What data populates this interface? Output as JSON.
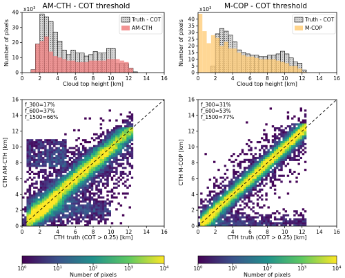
{
  "chart_data": [
    {
      "type": "bar",
      "panel": "top-left",
      "title": "AM-CTH - COT threshold",
      "xlabel": "Cloud top height [km]",
      "ylabel": "Number of pixels",
      "y_multiplier": "x10",
      "y_multiplier_exp": "3",
      "xlim": [
        0,
        16
      ],
      "ylim": [
        0,
        40
      ],
      "xticks": [
        "0",
        "2",
        "4",
        "6",
        "8",
        "10",
        "12",
        "14",
        "16"
      ],
      "yticks": [
        "0",
        "10",
        "20",
        "30",
        "40"
      ],
      "grid": false,
      "legend": "top-right",
      "bin_width": 0.5,
      "bin_starts": [
        1.0,
        1.5,
        2.0,
        2.5,
        3.0,
        3.5,
        4.0,
        4.5,
        5.0,
        5.5,
        6.0,
        6.5,
        7.0,
        7.5,
        8.0,
        8.5,
        9.0,
        9.5,
        10.0,
        10.5,
        11.0,
        11.5,
        12.0,
        12.5
      ],
      "series": [
        {
          "name": "Truth - COT",
          "style": "hatched",
          "color": "#cccccc",
          "values": [
            2,
            19,
            39,
            37,
            34,
            27,
            21,
            15,
            12,
            15,
            13,
            13,
            11,
            12,
            14,
            13,
            13,
            16,
            16,
            6,
            6,
            6,
            3,
            0.5
          ]
        },
        {
          "name": "AM-CTH",
          "style": "filled",
          "color": "#f08080",
          "values": [
            2,
            19,
            21,
            24,
            14,
            11,
            10,
            9,
            8,
            8,
            7,
            7,
            7,
            8,
            8,
            8,
            8,
            9,
            9,
            9,
            8,
            7,
            3,
            0
          ]
        }
      ]
    },
    {
      "type": "bar",
      "panel": "top-right",
      "title": "M-COP - COT threshold",
      "xlabel": "Cloud top height [km]",
      "ylabel": "Number of pixels",
      "y_multiplier": "x10",
      "y_multiplier_exp": "3",
      "xlim": [
        0,
        16
      ],
      "ylim": [
        0,
        45
      ],
      "xticks": [
        "0",
        "2",
        "4",
        "6",
        "8",
        "10",
        "12",
        "14",
        "16"
      ],
      "yticks": [
        "0",
        "5",
        "10",
        "15",
        "20",
        "25",
        "30",
        "35",
        "40"
      ],
      "grid": false,
      "legend": "top-right",
      "bin_width": 0.5,
      "bin_starts": [
        0.0,
        0.5,
        1.0,
        1.5,
        2.0,
        2.5,
        3.0,
        3.5,
        4.0,
        4.5,
        5.0,
        5.5,
        6.0,
        6.5,
        7.0,
        7.5,
        8.0,
        8.5,
        9.0,
        9.5,
        10.0,
        10.5,
        11.0,
        11.5,
        12.0,
        12.5
      ],
      "series": [
        {
          "name": "Truth - COT",
          "style": "hatched",
          "color": "#cccccc",
          "values": [
            0,
            0,
            0,
            5,
            29,
            33,
            31,
            28,
            23,
            17,
            15,
            14,
            13,
            13,
            12,
            12,
            13,
            13,
            14,
            16,
            14,
            11,
            8,
            7,
            2,
            0
          ]
        },
        {
          "name": "M-COP",
          "style": "filled",
          "color": "#ffcc77",
          "values": [
            44,
            31,
            22,
            28,
            26,
            20,
            23,
            18,
            18,
            15,
            13,
            12,
            12,
            11,
            10,
            10,
            10,
            10,
            9,
            8,
            7,
            5,
            5,
            3,
            0.5,
            0
          ]
        }
      ]
    },
    {
      "type": "heatmap",
      "panel": "bottom-left",
      "xlabel": "CTH truth (COT > 0.25) [km]",
      "ylabel": "CTH AM-CTH [km]",
      "xlim": [
        0,
        16
      ],
      "ylim": [
        0,
        16
      ],
      "xticks": [
        "0",
        "2",
        "4",
        "6",
        "8",
        "10",
        "12",
        "14",
        "16"
      ],
      "yticks": [
        "0",
        "2",
        "4",
        "6",
        "8",
        "10",
        "12",
        "14",
        "16"
      ],
      "diagonal": "1:1 dashed",
      "annotations": [
        "f_300=17%",
        "f_600=37%",
        "f_1500=66%"
      ],
      "colorscale": "viridis-log",
      "colorbar": {
        "label": "Number of pixels",
        "min": 1,
        "max": 10000,
        "ticks": [
          "10",
          "10",
          "10",
          "10",
          "10"
        ],
        "tick_exps": [
          "0",
          "1",
          "2",
          "3",
          "4"
        ]
      }
    },
    {
      "type": "heatmap",
      "panel": "bottom-right",
      "xlabel": "CTH truth (COT > 0.25) [km]",
      "ylabel": "CTH M-COP [km]",
      "xlim": [
        0,
        16
      ],
      "ylim": [
        0,
        16
      ],
      "xticks": [
        "0",
        "2",
        "4",
        "6",
        "8",
        "10",
        "12",
        "14",
        "16"
      ],
      "yticks": [
        "0",
        "2",
        "4",
        "6",
        "8",
        "10",
        "12",
        "14",
        "16"
      ],
      "diagonal": "1:1 dashed",
      "annotations": [
        "f_300=31%",
        "f_600=53%",
        "f_1500=77%"
      ],
      "colorscale": "viridis-log",
      "colorbar": {
        "label": "Number of pixels",
        "min": 1,
        "max": 10000,
        "ticks": [
          "10",
          "10",
          "10",
          "10",
          "10"
        ],
        "tick_exps": [
          "0",
          "1",
          "2",
          "3",
          "4"
        ]
      }
    }
  ]
}
